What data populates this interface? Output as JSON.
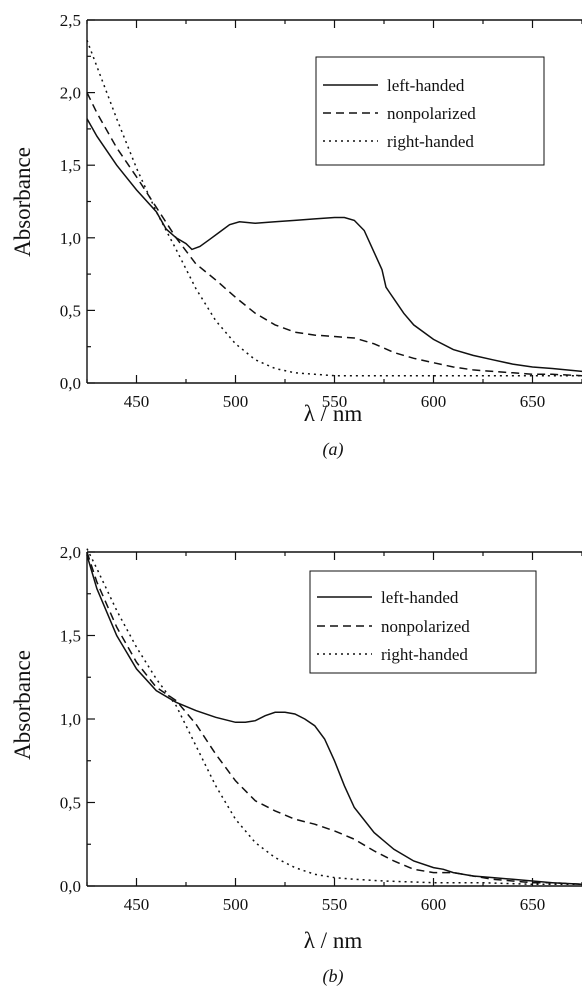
{
  "chart_data": [
    {
      "type": "line",
      "panel": "a",
      "caption": "(a)",
      "xlabel": "λ / nm",
      "ylabel": "Absorbance",
      "xlim": [
        425,
        675
      ],
      "ylim": [
        0,
        2.5
      ],
      "xticks": [
        450,
        500,
        550,
        600,
        650
      ],
      "yticks": [
        "0,0",
        "0,5",
        "1,0",
        "1,5",
        "2,0",
        "2,5"
      ],
      "ytick_values": [
        0,
        0.5,
        1.0,
        1.5,
        2.0,
        2.5
      ],
      "legend_position": "top-right",
      "grid": false,
      "series": [
        {
          "name": "left-handed",
          "style": "solid",
          "x": [
            425,
            430,
            440,
            450,
            460,
            465,
            470,
            475,
            478,
            482,
            487,
            492,
            497,
            502,
            510,
            520,
            530,
            540,
            550,
            555,
            560,
            565,
            570,
            574,
            576,
            578,
            580,
            585,
            590,
            600,
            610,
            620,
            630,
            640,
            650,
            660,
            675
          ],
          "y": [
            1.82,
            1.7,
            1.5,
            1.33,
            1.18,
            1.06,
            1.0,
            0.96,
            0.92,
            0.94,
            0.99,
            1.04,
            1.09,
            1.11,
            1.1,
            1.11,
            1.12,
            1.13,
            1.14,
            1.14,
            1.12,
            1.05,
            0.9,
            0.78,
            0.66,
            0.62,
            0.58,
            0.48,
            0.4,
            0.3,
            0.23,
            0.19,
            0.16,
            0.13,
            0.11,
            0.1,
            0.08
          ]
        },
        {
          "name": "nonpolarized",
          "style": "dashed",
          "x": [
            425,
            430,
            440,
            450,
            460,
            470,
            480,
            490,
            500,
            510,
            520,
            530,
            540,
            550,
            560,
            570,
            580,
            590,
            600,
            610,
            620,
            630,
            640,
            650,
            660,
            675
          ],
          "y": [
            2.0,
            1.86,
            1.62,
            1.42,
            1.21,
            1.0,
            0.82,
            0.71,
            0.59,
            0.48,
            0.4,
            0.35,
            0.33,
            0.32,
            0.31,
            0.27,
            0.21,
            0.17,
            0.14,
            0.11,
            0.09,
            0.08,
            0.07,
            0.06,
            0.06,
            0.05
          ]
        },
        {
          "name": "right-handed",
          "style": "dotted",
          "x": [
            425,
            430,
            440,
            450,
            460,
            470,
            480,
            490,
            500,
            510,
            520,
            530,
            540,
            550,
            560,
            575,
            600,
            625,
            650,
            675
          ],
          "y": [
            2.36,
            2.18,
            1.82,
            1.48,
            1.18,
            0.92,
            0.65,
            0.43,
            0.27,
            0.16,
            0.1,
            0.07,
            0.06,
            0.05,
            0.05,
            0.05,
            0.05,
            0.05,
            0.05,
            0.05
          ]
        }
      ]
    },
    {
      "type": "line",
      "panel": "b",
      "caption": "(b)",
      "xlabel": "λ / nm",
      "ylabel": "Absorbance",
      "xlim": [
        425,
        675
      ],
      "ylim": [
        0,
        2.0
      ],
      "xticks": [
        450,
        500,
        550,
        600,
        650
      ],
      "yticks": [
        "0,0",
        "0,5",
        "1,0",
        "1,5",
        "2,0"
      ],
      "ytick_values": [
        0,
        0.5,
        1.0,
        1.5,
        2.0
      ],
      "legend_position": "top-right",
      "grid": false,
      "series": [
        {
          "name": "left-handed",
          "style": "solid",
          "x": [
            425,
            430,
            440,
            450,
            460,
            470,
            480,
            490,
            500,
            505,
            510,
            515,
            520,
            525,
            530,
            535,
            540,
            545,
            550,
            555,
            560,
            570,
            580,
            590,
            600,
            605,
            610,
            620,
            630,
            640,
            650,
            660,
            675
          ],
          "y": [
            1.98,
            1.78,
            1.5,
            1.3,
            1.17,
            1.1,
            1.05,
            1.01,
            0.98,
            0.98,
            0.99,
            1.02,
            1.04,
            1.04,
            1.03,
            1.0,
            0.96,
            0.88,
            0.75,
            0.6,
            0.47,
            0.32,
            0.22,
            0.15,
            0.11,
            0.1,
            0.08,
            0.06,
            0.05,
            0.04,
            0.03,
            0.02,
            0.01
          ]
        },
        {
          "name": "nonpolarized",
          "style": "dashed",
          "x": [
            425,
            430,
            440,
            450,
            460,
            470,
            480,
            490,
            500,
            510,
            520,
            530,
            540,
            550,
            560,
            570,
            580,
            590,
            600,
            610,
            620,
            630,
            640,
            650,
            660,
            675
          ],
          "y": [
            2.0,
            1.82,
            1.55,
            1.34,
            1.19,
            1.11,
            0.97,
            0.79,
            0.63,
            0.51,
            0.45,
            0.4,
            0.37,
            0.33,
            0.28,
            0.21,
            0.15,
            0.1,
            0.08,
            0.08,
            0.06,
            0.04,
            0.03,
            0.02,
            0.02,
            0.01
          ]
        },
        {
          "name": "right-handed",
          "style": "dotted",
          "x": [
            425,
            430,
            440,
            450,
            460,
            470,
            480,
            490,
            500,
            510,
            520,
            530,
            540,
            550,
            560,
            575,
            600,
            625,
            650,
            675
          ],
          "y": [
            2.02,
            1.9,
            1.65,
            1.43,
            1.24,
            1.08,
            0.84,
            0.6,
            0.4,
            0.26,
            0.17,
            0.11,
            0.07,
            0.05,
            0.04,
            0.03,
            0.02,
            0.02,
            0.01,
            0.01
          ]
        }
      ]
    }
  ]
}
